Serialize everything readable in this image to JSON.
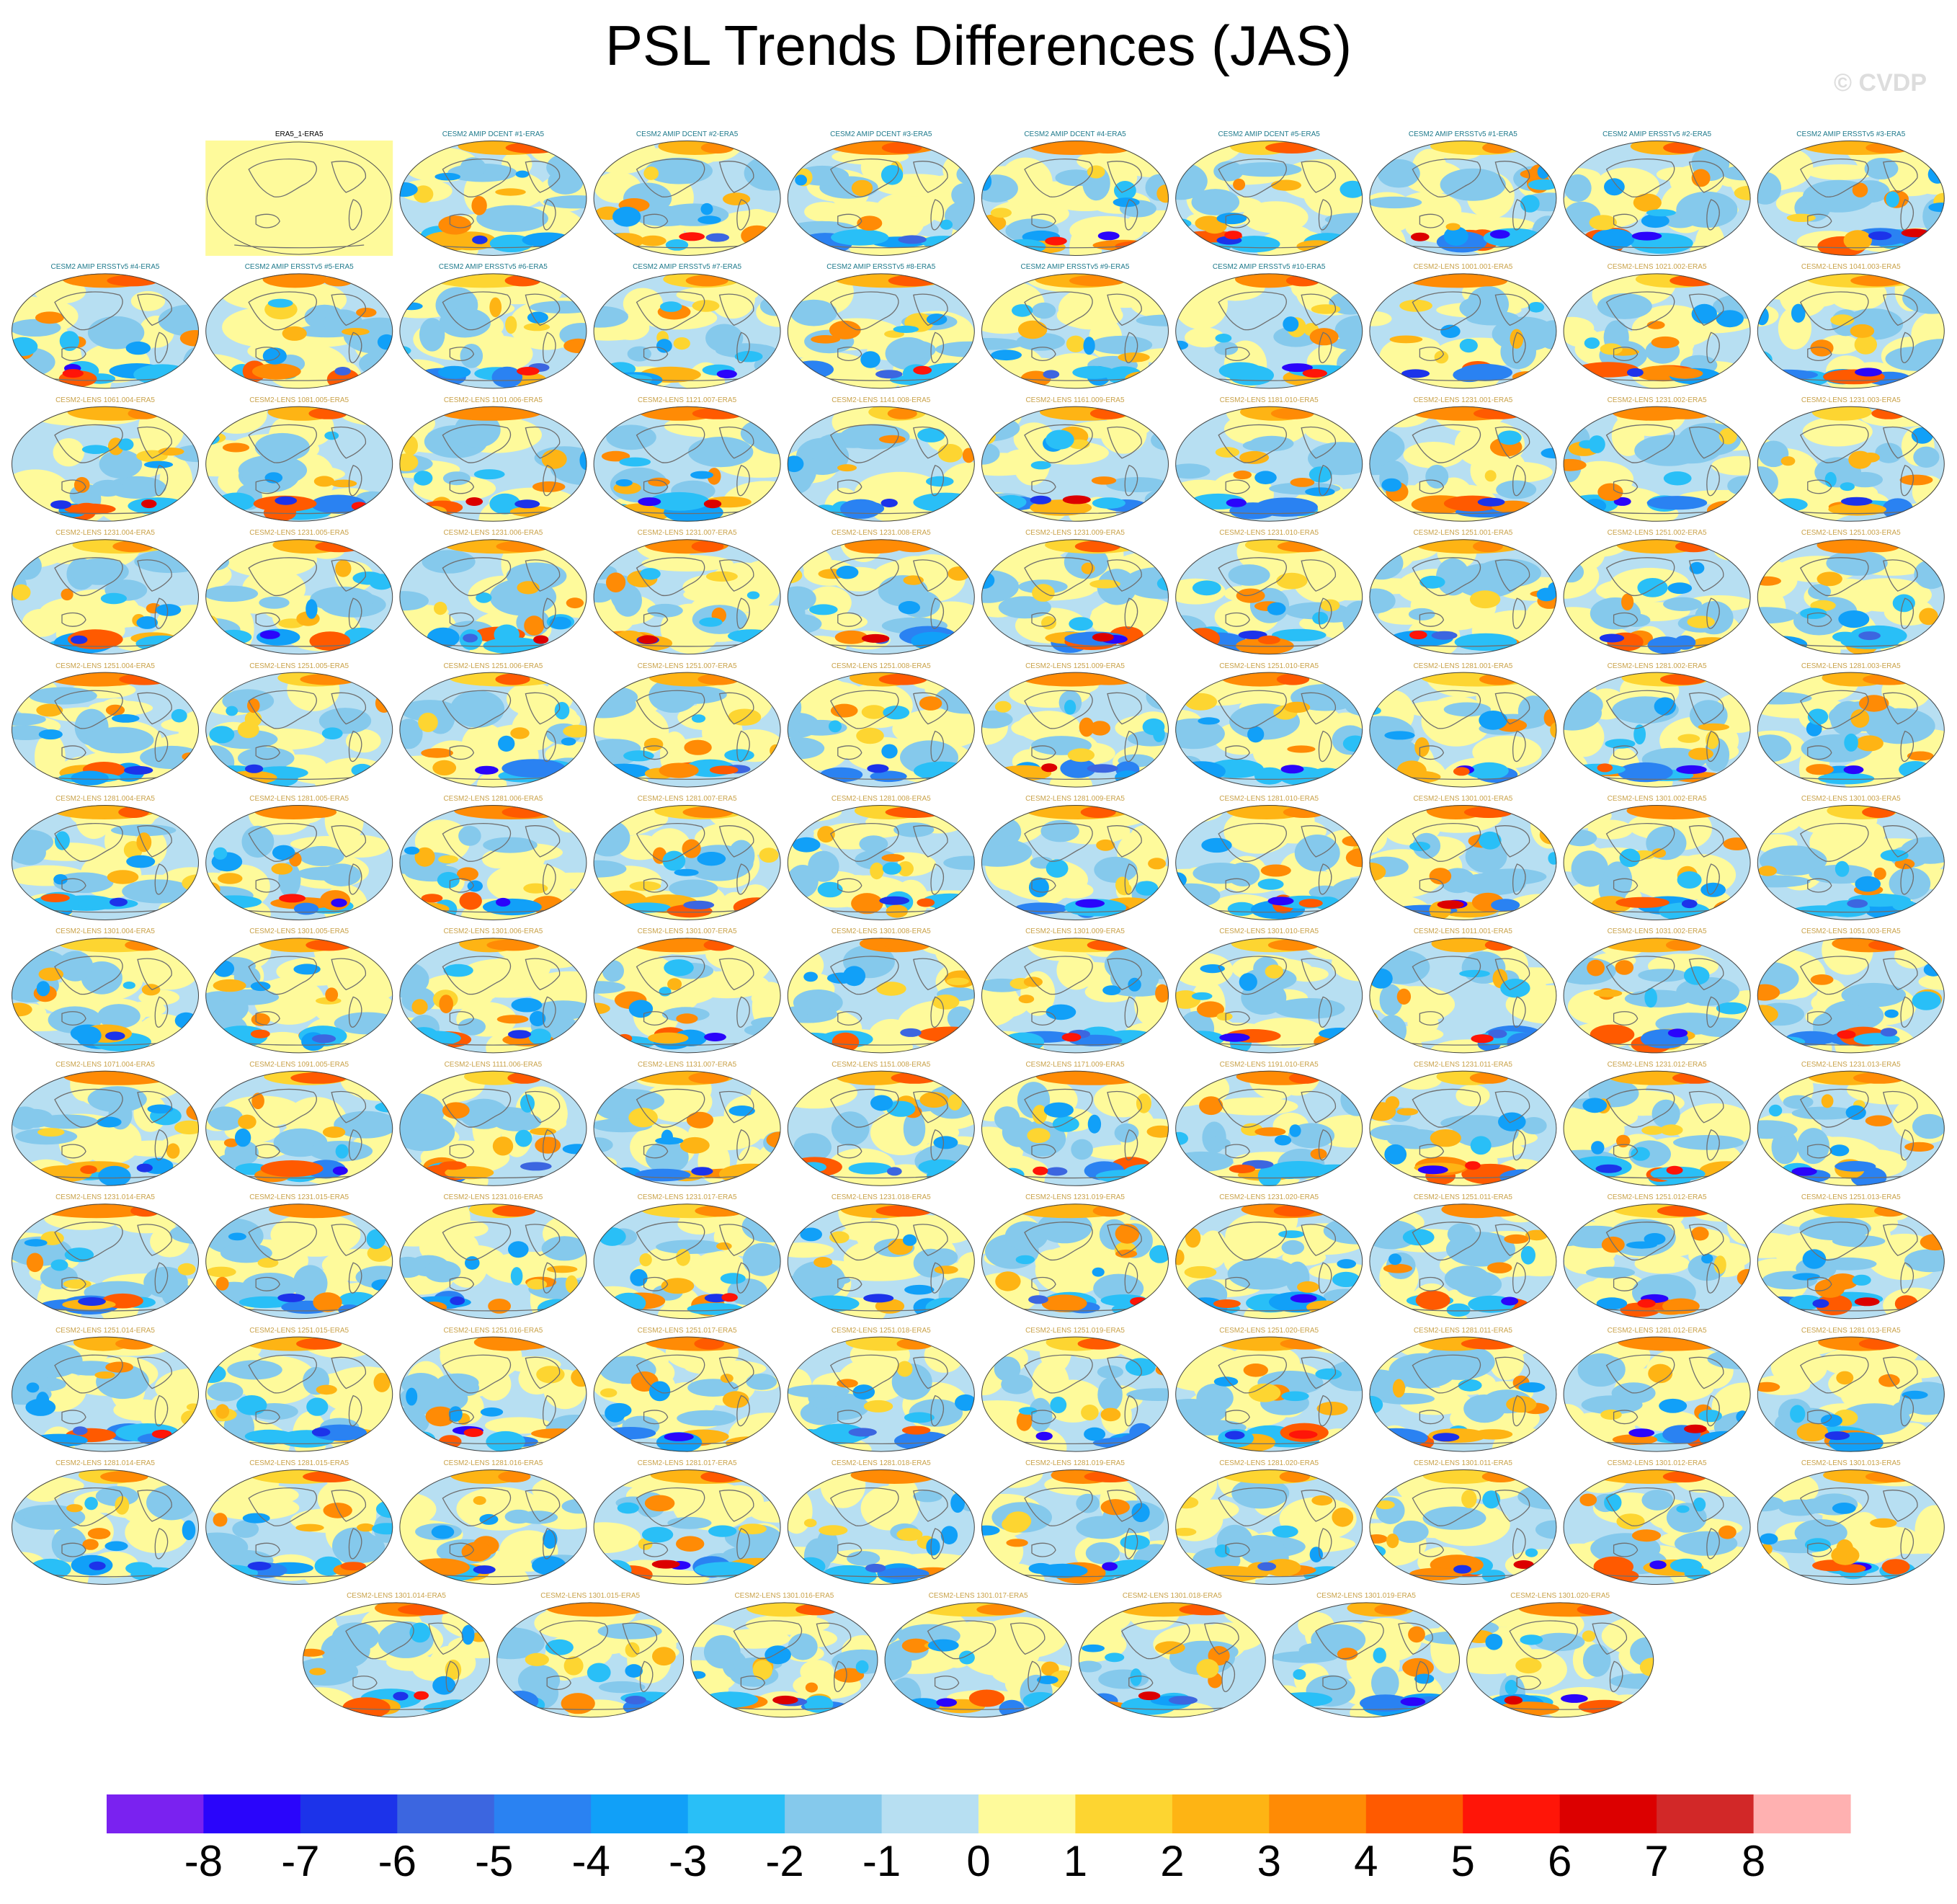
{
  "title": "PSL Trends Differences (JAS)",
  "watermark": "© CVDP",
  "chart_data": {
    "type": "heatmap",
    "title": "PSL Trends Differences (JAS)",
    "panel_titles": [
      "ERA5_1-ERA5",
      "CESM2 AMIP DCENT #1-ERA5",
      "CESM2 AMIP DCENT #2-ERA5",
      "CESM2 AMIP DCENT #3-ERA5",
      "CESM2 AMIP DCENT #4-ERA5",
      "CESM2 AMIP DCENT #5-ERA5",
      "CESM2 AMIP ERSSTv5 #1-ERA5",
      "CESM2 AMIP ERSSTv5 #2-ERA5",
      "CESM2 AMIP ERSSTv5 #3-ERA5",
      "CESM2 AMIP ERSSTv5 #4-ERA5",
      "CESM2 AMIP ERSSTv5 #5-ERA5",
      "CESM2 AMIP ERSSTv5 #6-ERA5",
      "CESM2 AMIP ERSSTv5 #7-ERA5",
      "CESM2 AMIP ERSSTv5 #8-ERA5",
      "CESM2 AMIP ERSSTv5 #9-ERA5",
      "CESM2 AMIP ERSSTv5 #10-ERA5",
      "CESM2-LENS 1001.001-ERA5",
      "CESM2-LENS 1021.002-ERA5",
      "CESM2-LENS 1041.003-ERA5",
      "CESM2-LENS 1061.004-ERA5",
      "CESM2-LENS 1081.005-ERA5",
      "CESM2-LENS 1101.006-ERA5",
      "CESM2-LENS 1121.007-ERA5",
      "CESM2-LENS 1141.008-ERA5",
      "CESM2-LENS 1161.009-ERA5",
      "CESM2-LENS 1181.010-ERA5",
      "CESM2-LENS 1231.001-ERA5",
      "CESM2-LENS 1231.002-ERA5",
      "CESM2-LENS 1231.003-ERA5",
      "CESM2-LENS 1231.004-ERA5",
      "CESM2-LENS 1231.005-ERA5",
      "CESM2-LENS 1231.006-ERA5",
      "CESM2-LENS 1231.007-ERA5",
      "CESM2-LENS 1231.008-ERA5",
      "CESM2-LENS 1231.009-ERA5",
      "CESM2-LENS 1231.010-ERA5",
      "CESM2-LENS 1251.001-ERA5",
      "CESM2-LENS 1251.002-ERA5",
      "CESM2-LENS 1251.003-ERA5",
      "CESM2-LENS 1251.004-ERA5",
      "CESM2-LENS 1251.005-ERA5",
      "CESM2-LENS 1251.006-ERA5",
      "CESM2-LENS 1251.007-ERA5",
      "CESM2-LENS 1251.008-ERA5",
      "CESM2-LENS 1251.009-ERA5",
      "CESM2-LENS 1251.010-ERA5",
      "CESM2-LENS 1281.001-ERA5",
      "CESM2-LENS 1281.002-ERA5",
      "CESM2-LENS 1281.003-ERA5",
      "CESM2-LENS 1281.004-ERA5",
      "CESM2-LENS 1281.005-ERA5",
      "CESM2-LENS 1281.006-ERA5",
      "CESM2-LENS 1281.007-ERA5",
      "CESM2-LENS 1281.008-ERA5",
      "CESM2-LENS 1281.009-ERA5",
      "CESM2-LENS 1281.010-ERA5",
      "CESM2-LENS 1301.001-ERA5",
      "CESM2-LENS 1301.002-ERA5",
      "CESM2-LENS 1301.003-ERA5",
      "CESM2-LENS 1301.004-ERA5",
      "CESM2-LENS 1301.005-ERA5",
      "CESM2-LENS 1301.006-ERA5",
      "CESM2-LENS 1301.007-ERA5",
      "CESM2-LENS 1301.008-ERA5",
      "CESM2-LENS 1301.009-ERA5",
      "CESM2-LENS 1301.010-ERA5",
      "CESM2-LENS 1011.001-ERA5",
      "CESM2-LENS 1031.002-ERA5",
      "CESM2-LENS 1051.003-ERA5",
      "CESM2-LENS 1071.004-ERA5",
      "CESM2-LENS 1091.005-ERA5",
      "CESM2-LENS 1111.006-ERA5",
      "CESM2-LENS 1131.007-ERA5",
      "CESM2-LENS 1151.008-ERA5",
      "CESM2-LENS 1171.009-ERA5",
      "CESM2-LENS 1191.010-ERA5",
      "CESM2-LENS 1231.011-ERA5",
      "CESM2-LENS 1231.012-ERA5",
      "CESM2-LENS 1231.013-ERA5",
      "CESM2-LENS 1231.014-ERA5",
      "CESM2-LENS 1231.015-ERA5",
      "CESM2-LENS 1231.016-ERA5",
      "CESM2-LENS 1231.017-ERA5",
      "CESM2-LENS 1231.018-ERA5",
      "CESM2-LENS 1231.019-ERA5",
      "CESM2-LENS 1231.020-ERA5",
      "CESM2-LENS 1251.011-ERA5",
      "CESM2-LENS 1251.012-ERA5",
      "CESM2-LENS 1251.013-ERA5",
      "CESM2-LENS 1251.014-ERA5",
      "CESM2-LENS 1251.015-ERA5",
      "CESM2-LENS 1251.016-ERA5",
      "CESM2-LENS 1251.017-ERA5",
      "CESM2-LENS 1251.018-ERA5",
      "CESM2-LENS 1251.019-ERA5",
      "CESM2-LENS 1251.020-ERA5",
      "CESM2-LENS 1281.011-ERA5",
      "CESM2-LENS 1281.012-ERA5",
      "CESM2-LENS 1281.013-ERA5",
      "CESM2-LENS 1281.014-ERA5",
      "CESM2-LENS 1281.015-ERA5",
      "CESM2-LENS 1281.016-ERA5",
      "CESM2-LENS 1281.017-ERA5",
      "CESM2-LENS 1281.018-ERA5",
      "CESM2-LENS 1281.019-ERA5",
      "CESM2-LENS 1281.020-ERA5",
      "CESM2-LENS 1301.011-ERA5",
      "CESM2-LENS 1301.012-ERA5",
      "CESM2-LENS 1301.013-ERA5",
      "CESM2-LENS 1301.014-ERA5",
      "CESM2-LENS 1301.015-ERA5",
      "CESM2-LENS 1301.016-ERA5",
      "CESM2-LENS 1301.017-ERA5",
      "CESM2-LENS 1301.018-ERA5",
      "CESM2-LENS 1301.019-ERA5",
      "CESM2-LENS 1301.020-ERA5"
    ],
    "panel_title_colors": {
      "observation": "#000000",
      "amip": "#1f7a8c",
      "lens": "#c9a24a"
    },
    "colorbar": {
      "ticks": [
        "-8",
        "-7",
        "-6",
        "-5",
        "-4",
        "-3",
        "-2",
        "-1",
        "0",
        "1",
        "2",
        "3",
        "4",
        "5",
        "6",
        "7",
        "8"
      ],
      "colors": [
        "#7a22f0",
        "#2a05fb",
        "#1c33ea",
        "#3c66e0",
        "#2a82f2",
        "#11a0f8",
        "#29bff7",
        "#85c9ec",
        "#b7dff2",
        "#fefa9b",
        "#fdd531",
        "#feb414",
        "#ff8b05",
        "#ff5a00",
        "#ff1508",
        "#dc0000",
        "#d22828",
        "#ffb1b1"
      ]
    }
  }
}
